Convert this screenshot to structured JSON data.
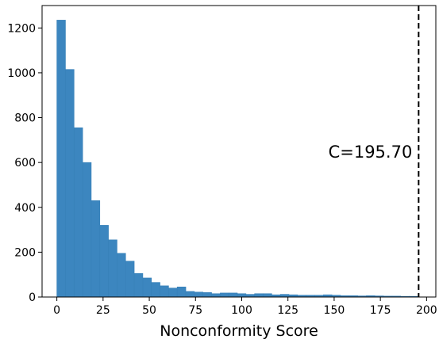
{
  "chart_data": {
    "type": "bar",
    "histogram": true,
    "bin_width": 4.65,
    "bin_start": 0,
    "values": [
      1235,
      1015,
      755,
      600,
      430,
      320,
      255,
      195,
      160,
      105,
      85,
      65,
      50,
      40,
      45,
      25,
      22,
      20,
      15,
      18,
      18,
      15,
      12,
      15,
      15,
      10,
      12,
      10,
      8,
      8,
      8,
      10,
      8,
      6,
      6,
      5,
      6,
      5,
      4,
      4,
      3,
      3
    ],
    "xlabel": "Nonconformity Score",
    "ylabel": "",
    "xlim": [
      -8,
      205
    ],
    "ylim": [
      0,
      1300
    ],
    "xticks": [
      0,
      25,
      50,
      75,
      100,
      125,
      150,
      175,
      200
    ],
    "yticks": [
      0,
      200,
      400,
      600,
      800,
      1000,
      1200
    ],
    "threshold": {
      "x": 195.7,
      "label": "C=195.70",
      "style": "dashed"
    },
    "colors": {
      "bars": "#3c86bf",
      "threshold": "#000000"
    },
    "grid": false,
    "legend": "none"
  }
}
